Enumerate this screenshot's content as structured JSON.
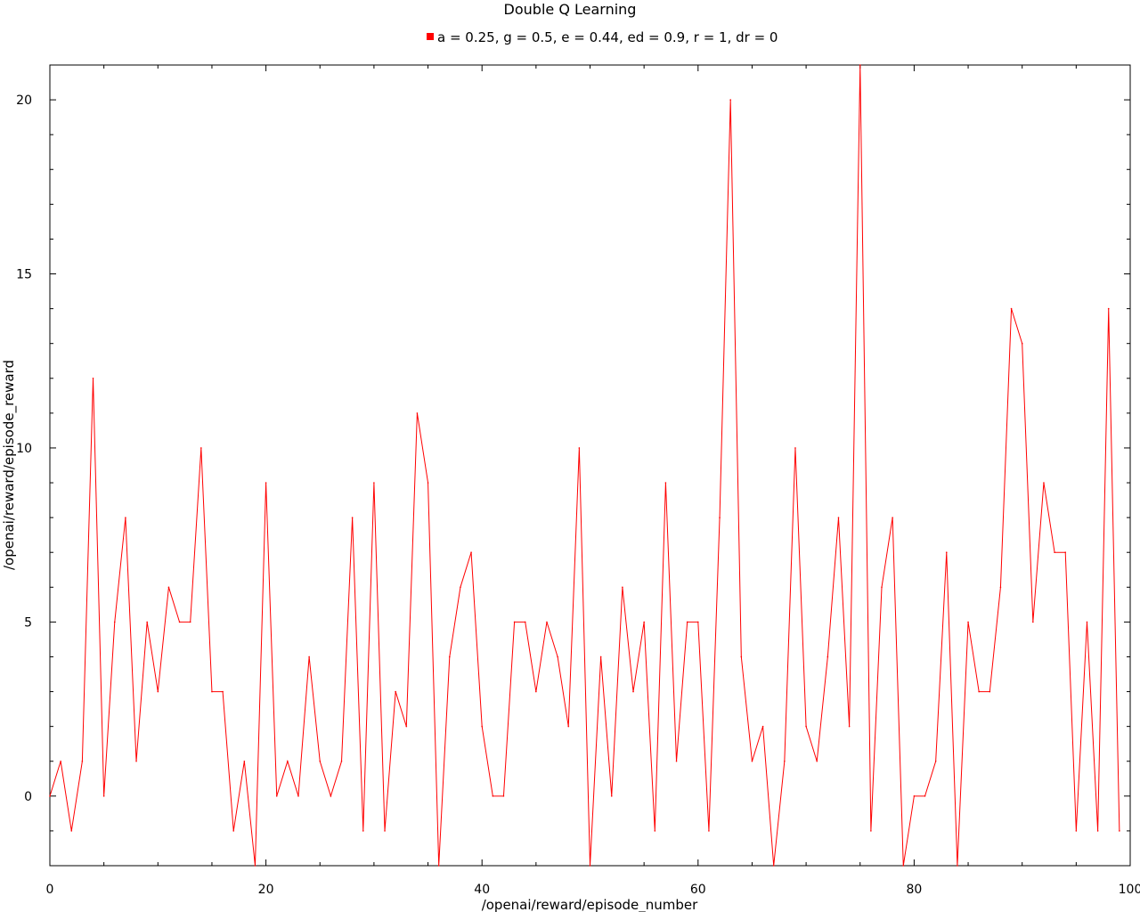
{
  "chart_data": {
    "type": "line",
    "title": "Double Q Learning",
    "xlabel": "/openai/reward/episode_number",
    "ylabel": "/openai/reward/episode_reward",
    "xlim": [
      0,
      100
    ],
    "ylim": [
      -2,
      21
    ],
    "xticks": [
      0,
      20,
      40,
      60,
      80,
      100
    ],
    "yticks": [
      0,
      5,
      10,
      15,
      20
    ],
    "grid": false,
    "legend": "top-center",
    "series": [
      {
        "name": "a = 0.25, g = 0.5, e = 0.44, ed = 0.9, r = 1, dr = 0",
        "color": "#ff0000",
        "x": [
          0,
          1,
          2,
          3,
          4,
          5,
          6,
          7,
          8,
          9,
          10,
          11,
          12,
          13,
          14,
          15,
          16,
          17,
          18,
          19,
          20,
          21,
          22,
          23,
          24,
          25,
          26,
          27,
          28,
          29,
          30,
          31,
          32,
          33,
          34,
          35,
          36,
          37,
          38,
          39,
          40,
          41,
          42,
          43,
          44,
          45,
          46,
          47,
          48,
          49,
          50,
          51,
          52,
          53,
          54,
          55,
          56,
          57,
          58,
          59,
          60,
          61,
          62,
          63,
          64,
          65,
          66,
          67,
          68,
          69,
          70,
          71,
          72,
          73,
          74,
          75,
          76,
          77,
          78,
          79,
          80,
          81,
          82,
          83,
          84,
          85,
          86,
          87,
          88,
          89,
          90,
          91,
          92,
          93,
          94,
          95,
          96,
          97,
          98,
          99
        ],
        "values": [
          0,
          1,
          -1,
          1,
          12,
          0,
          5,
          8,
          1,
          5,
          3,
          6,
          5,
          5,
          10,
          3,
          3,
          -1,
          1,
          -2,
          9,
          0,
          1,
          0,
          4,
          1,
          0,
          1,
          8,
          -1,
          9,
          -1,
          3,
          2,
          11,
          9,
          -2,
          4,
          6,
          7,
          2,
          0,
          0,
          5,
          5,
          3,
          5,
          4,
          2,
          10,
          -2,
          4,
          0,
          6,
          3,
          5,
          -1,
          9,
          1,
          5,
          5,
          -1,
          8,
          20,
          4,
          1,
          2,
          -2,
          1,
          10,
          2,
          1,
          4,
          8,
          2,
          21,
          -1,
          6,
          8,
          -2,
          0,
          0,
          1,
          7,
          -2,
          5,
          3,
          3,
          6,
          14,
          13,
          5,
          9,
          7,
          7,
          -1,
          5,
          -1,
          14,
          -1
        ]
      }
    ]
  }
}
